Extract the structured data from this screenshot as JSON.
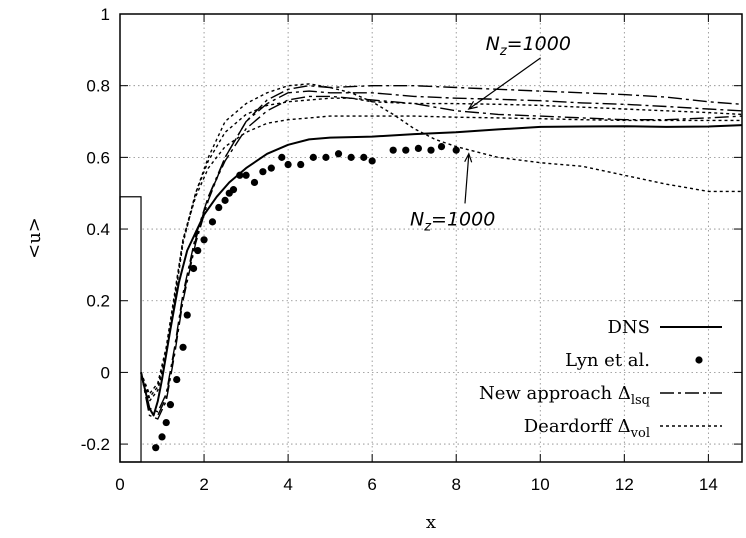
{
  "chart_data": {
    "type": "line",
    "xlabel": "x",
    "ylabel": "<u>",
    "xlim": [
      0,
      14.8
    ],
    "ylim": [
      -0.25,
      1.0
    ],
    "xticks": [
      "0",
      "2",
      "4",
      "6",
      "8",
      "10",
      "12",
      "14"
    ],
    "yticks": [
      "-0.2",
      "0",
      "0.2",
      "0.4",
      "0.6",
      "0.8",
      "1"
    ],
    "grid": true,
    "legend_position": "bottom-right",
    "legend": [
      {
        "text": "DNS",
        "sub": ""
      },
      {
        "text": "Lyn et al.",
        "sub": ""
      },
      {
        "text": "New approach  Δ",
        "sub": "lsq"
      },
      {
        "text": "Deardorff  Δ",
        "sub": "vol"
      }
    ],
    "annotations": [
      {
        "text": "N",
        "sub": "z",
        "rest": "=1000",
        "x": 8.7,
        "y": 0.9,
        "arrow_to": [
          8.3,
          0.735
        ]
      },
      {
        "text": "N",
        "sub": "z",
        "rest": "=1000",
        "x": 6.9,
        "y": 0.41,
        "arrow_to": [
          8.3,
          0.61
        ]
      }
    ],
    "obstacle": {
      "x": [
        0,
        0.5
      ],
      "y_top": 0.49
    },
    "series": [
      {
        "name": "DNS",
        "style": "solid",
        "x": [
          0.5,
          0.6,
          0.7,
          0.8,
          0.9,
          1.0,
          1.2,
          1.4,
          1.6,
          1.8,
          2.0,
          2.3,
          2.6,
          3.0,
          3.5,
          4.0,
          4.5,
          5.0,
          6.0,
          7.0,
          8.0,
          9.0,
          10.0,
          11.0,
          12.0,
          13.0,
          14.0,
          14.8
        ],
        "y": [
          0.0,
          -0.05,
          -0.1,
          -0.12,
          -0.08,
          -0.02,
          0.12,
          0.25,
          0.34,
          0.39,
          0.44,
          0.49,
          0.53,
          0.57,
          0.61,
          0.635,
          0.65,
          0.655,
          0.658,
          0.665,
          0.67,
          0.678,
          0.685,
          0.686,
          0.687,
          0.685,
          0.686,
          0.69
        ]
      },
      {
        "name": "Lyn et al.",
        "style": "points",
        "x": [
          0.85,
          1.0,
          1.1,
          1.2,
          1.35,
          1.5,
          1.6,
          1.75,
          1.85,
          2.0,
          2.2,
          2.35,
          2.5,
          2.6,
          2.7,
          2.85,
          3.0,
          3.2,
          3.4,
          3.6,
          3.85,
          4.0,
          4.3,
          4.6,
          4.9,
          5.2,
          5.5,
          5.8,
          6.0,
          6.5,
          6.8,
          7.1,
          7.4,
          7.65,
          8.0
        ],
        "y": [
          -0.21,
          -0.18,
          -0.14,
          -0.09,
          -0.02,
          0.07,
          0.16,
          0.29,
          0.34,
          0.37,
          0.42,
          0.46,
          0.48,
          0.5,
          0.51,
          0.55,
          0.55,
          0.53,
          0.56,
          0.57,
          0.6,
          0.58,
          0.58,
          0.6,
          0.6,
          0.61,
          0.6,
          0.6,
          0.59,
          0.62,
          0.62,
          0.625,
          0.62,
          0.63,
          0.62
        ]
      },
      {
        "name": "New approach Δlsq (a)",
        "style": "dashdot",
        "x": [
          0.5,
          0.7,
          0.9,
          1.1,
          1.3,
          1.5,
          1.8,
          2.1,
          2.5,
          3.0,
          3.5,
          4.0,
          4.5,
          5.0,
          6.0,
          7.0,
          8.0,
          9.0,
          10.0,
          11.0,
          12.0,
          13.0,
          14.0,
          14.8
        ],
        "y": [
          0.0,
          -0.12,
          -0.13,
          -0.08,
          0.05,
          0.2,
          0.36,
          0.48,
          0.6,
          0.7,
          0.76,
          0.79,
          0.8,
          0.795,
          0.8,
          0.8,
          0.795,
          0.79,
          0.785,
          0.78,
          0.775,
          0.768,
          0.755,
          0.748
        ]
      },
      {
        "name": "New approach Δlsq (b)",
        "style": "dashdot",
        "x": [
          0.5,
          0.7,
          0.9,
          1.1,
          1.3,
          1.5,
          1.8,
          2.1,
          2.5,
          3.0,
          3.5,
          4.0,
          4.5,
          5.0,
          6.0,
          7.0,
          8.0,
          9.0,
          10.0,
          11.0,
          12.0,
          13.0,
          14.0,
          14.8
        ],
        "y": [
          0.0,
          -0.11,
          -0.12,
          -0.07,
          0.06,
          0.21,
          0.37,
          0.49,
          0.6,
          0.7,
          0.75,
          0.78,
          0.785,
          0.78,
          0.78,
          0.77,
          0.765,
          0.762,
          0.758,
          0.752,
          0.748,
          0.742,
          0.735,
          0.73
        ]
      },
      {
        "name": "New approach Δlsq (c)",
        "style": "dashdot",
        "x": [
          0.5,
          0.7,
          0.9,
          1.1,
          1.3,
          1.5,
          1.8,
          2.1,
          2.5,
          3.0,
          3.5,
          4.0,
          4.5,
          5.0,
          6.0,
          7.0,
          8.0,
          9.0,
          10.0,
          11.0,
          12.0,
          13.0,
          14.0,
          14.8
        ],
        "y": [
          0.0,
          -0.1,
          -0.11,
          -0.06,
          0.07,
          0.22,
          0.38,
          0.49,
          0.59,
          0.68,
          0.73,
          0.76,
          0.77,
          0.77,
          0.76,
          0.75,
          0.73,
          0.72,
          0.715,
          0.71,
          0.705,
          0.705,
          0.71,
          0.715
        ]
      },
      {
        "name": "Deardorff Δvol (a)",
        "style": "dotted",
        "x": [
          0.5,
          0.7,
          0.9,
          1.1,
          1.3,
          1.5,
          1.8,
          2.1,
          2.5,
          3.0,
          3.5,
          4.0,
          4.5,
          5.0,
          5.5,
          6.0,
          6.5,
          7.0,
          7.5,
          8.0,
          8.5,
          9.0,
          10.0,
          11.0,
          12.0,
          13.0,
          14.0,
          14.8
        ],
        "y": [
          0.0,
          -0.08,
          -0.05,
          0.05,
          0.2,
          0.36,
          0.5,
          0.6,
          0.7,
          0.75,
          0.78,
          0.8,
          0.805,
          0.795,
          0.78,
          0.755,
          0.72,
          0.68,
          0.65,
          0.63,
          0.615,
          0.6,
          0.585,
          0.575,
          0.55,
          0.525,
          0.505,
          0.505
        ]
      },
      {
        "name": "Deardorff Δvol (b)",
        "style": "dotted",
        "x": [
          0.5,
          0.7,
          0.9,
          1.1,
          1.3,
          1.5,
          1.8,
          2.1,
          2.5,
          3.0,
          3.5,
          4.0,
          4.5,
          5.0,
          5.5,
          6.0,
          7.0,
          8.0,
          9.0,
          10.0,
          11.0,
          12.0,
          13.0,
          14.0,
          14.8
        ],
        "y": [
          0.0,
          -0.07,
          -0.04,
          0.06,
          0.21,
          0.37,
          0.5,
          0.59,
          0.67,
          0.72,
          0.745,
          0.755,
          0.76,
          0.765,
          0.765,
          0.755,
          0.75,
          0.75,
          0.748,
          0.745,
          0.74,
          0.735,
          0.73,
          0.725,
          0.72
        ]
      },
      {
        "name": "Deardorff Δvol (c)",
        "style": "dotted",
        "x": [
          0.5,
          0.7,
          0.9,
          1.1,
          1.3,
          1.5,
          1.8,
          2.1,
          2.5,
          3.0,
          3.5,
          4.0,
          4.5,
          5.0,
          6.0,
          7.0,
          8.0,
          9.0,
          10.0,
          11.0,
          12.0,
          13.0,
          14.0,
          14.8
        ],
        "y": [
          0.0,
          -0.06,
          -0.03,
          0.07,
          0.22,
          0.37,
          0.49,
          0.57,
          0.63,
          0.67,
          0.695,
          0.705,
          0.71,
          0.715,
          0.715,
          0.715,
          0.712,
          0.71,
          0.708,
          0.705,
          0.703,
          0.703,
          0.703,
          0.703
        ]
      }
    ]
  }
}
